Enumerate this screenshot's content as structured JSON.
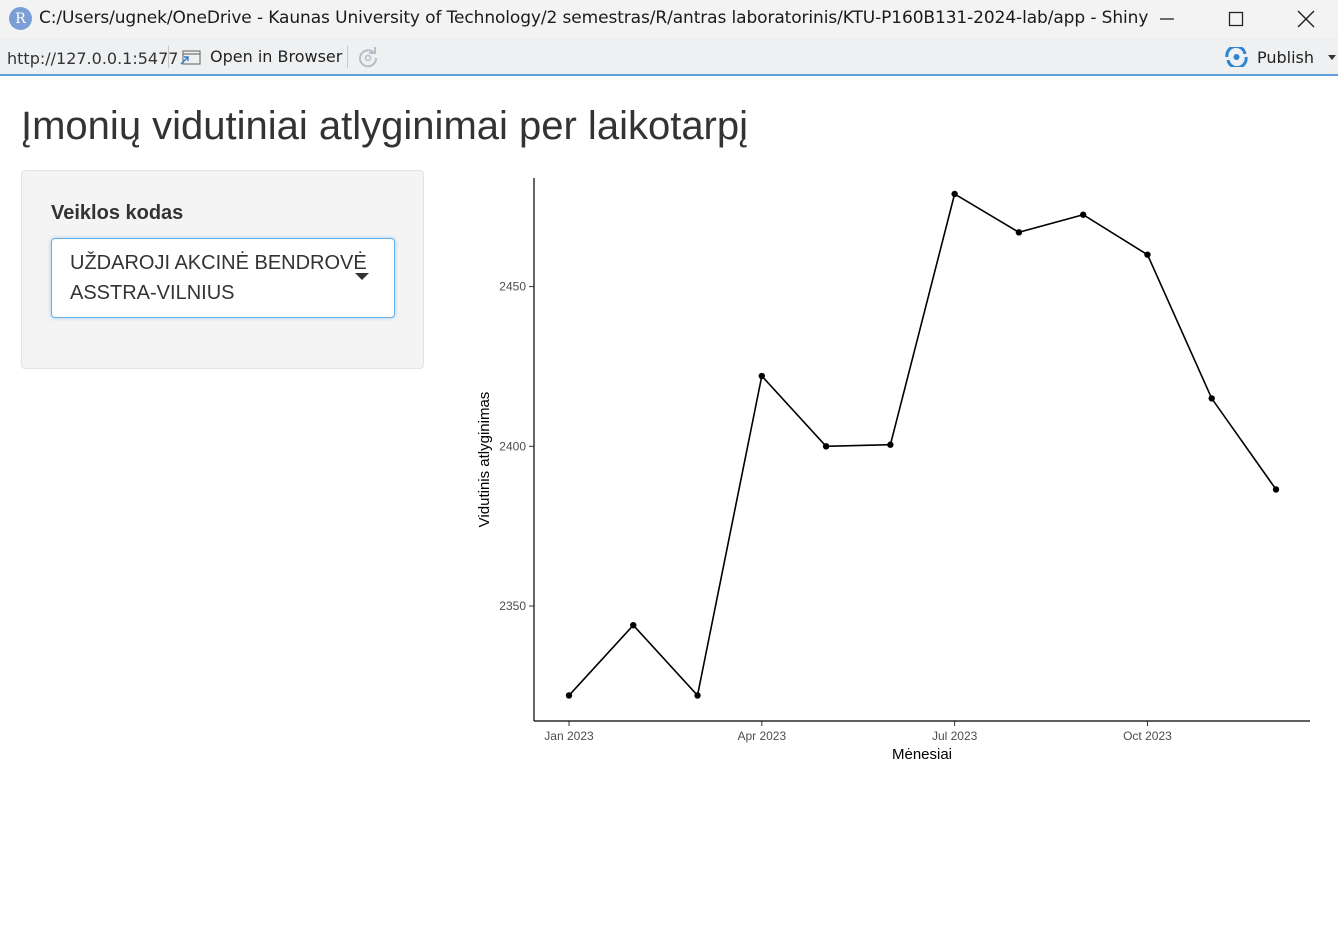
{
  "window": {
    "title": "C:/Users/ugnek/OneDrive - Kaunas University of Technology/2 semestras/R/antras laboratorinis/KTU-P160B131-2024-lab/app - Shiny",
    "app_icon_letter": "R"
  },
  "toolbar": {
    "url": "http://127.0.0.1:5477",
    "open_in_browser_label": "Open in Browser",
    "publish_label": "Publish"
  },
  "page": {
    "title": "Įmonių vidutiniai atlyginimai per laikotarpį"
  },
  "sidebar": {
    "label": "Veiklos kodas",
    "selected_value": "UŽDAROJI AKCINĖ BENDROVĖ ASSTRA-VILNIUS"
  },
  "chart_data": {
    "type": "line",
    "xlabel": "Mėnesiai",
    "ylabel": "Vidutinis atlyginimas",
    "x": [
      "2023-01",
      "2023-02",
      "2023-03",
      "2023-04",
      "2023-05",
      "2023-06",
      "2023-07",
      "2023-08",
      "2023-09",
      "2023-10",
      "2023-11",
      "2023-12"
    ],
    "values": [
      2322,
      2344,
      2322,
      2422,
      2400,
      2400.5,
      2479,
      2467,
      2472.5,
      2460,
      2415,
      2386.5
    ],
    "x_ticks": [
      "Jan 2023",
      "Apr 2023",
      "Jul 2023",
      "Oct 2023"
    ],
    "y_ticks": [
      2350,
      2400,
      2450
    ],
    "ylim": [
      2314,
      2484
    ],
    "grid": false,
    "markers": true,
    "line_color": "#000000"
  }
}
